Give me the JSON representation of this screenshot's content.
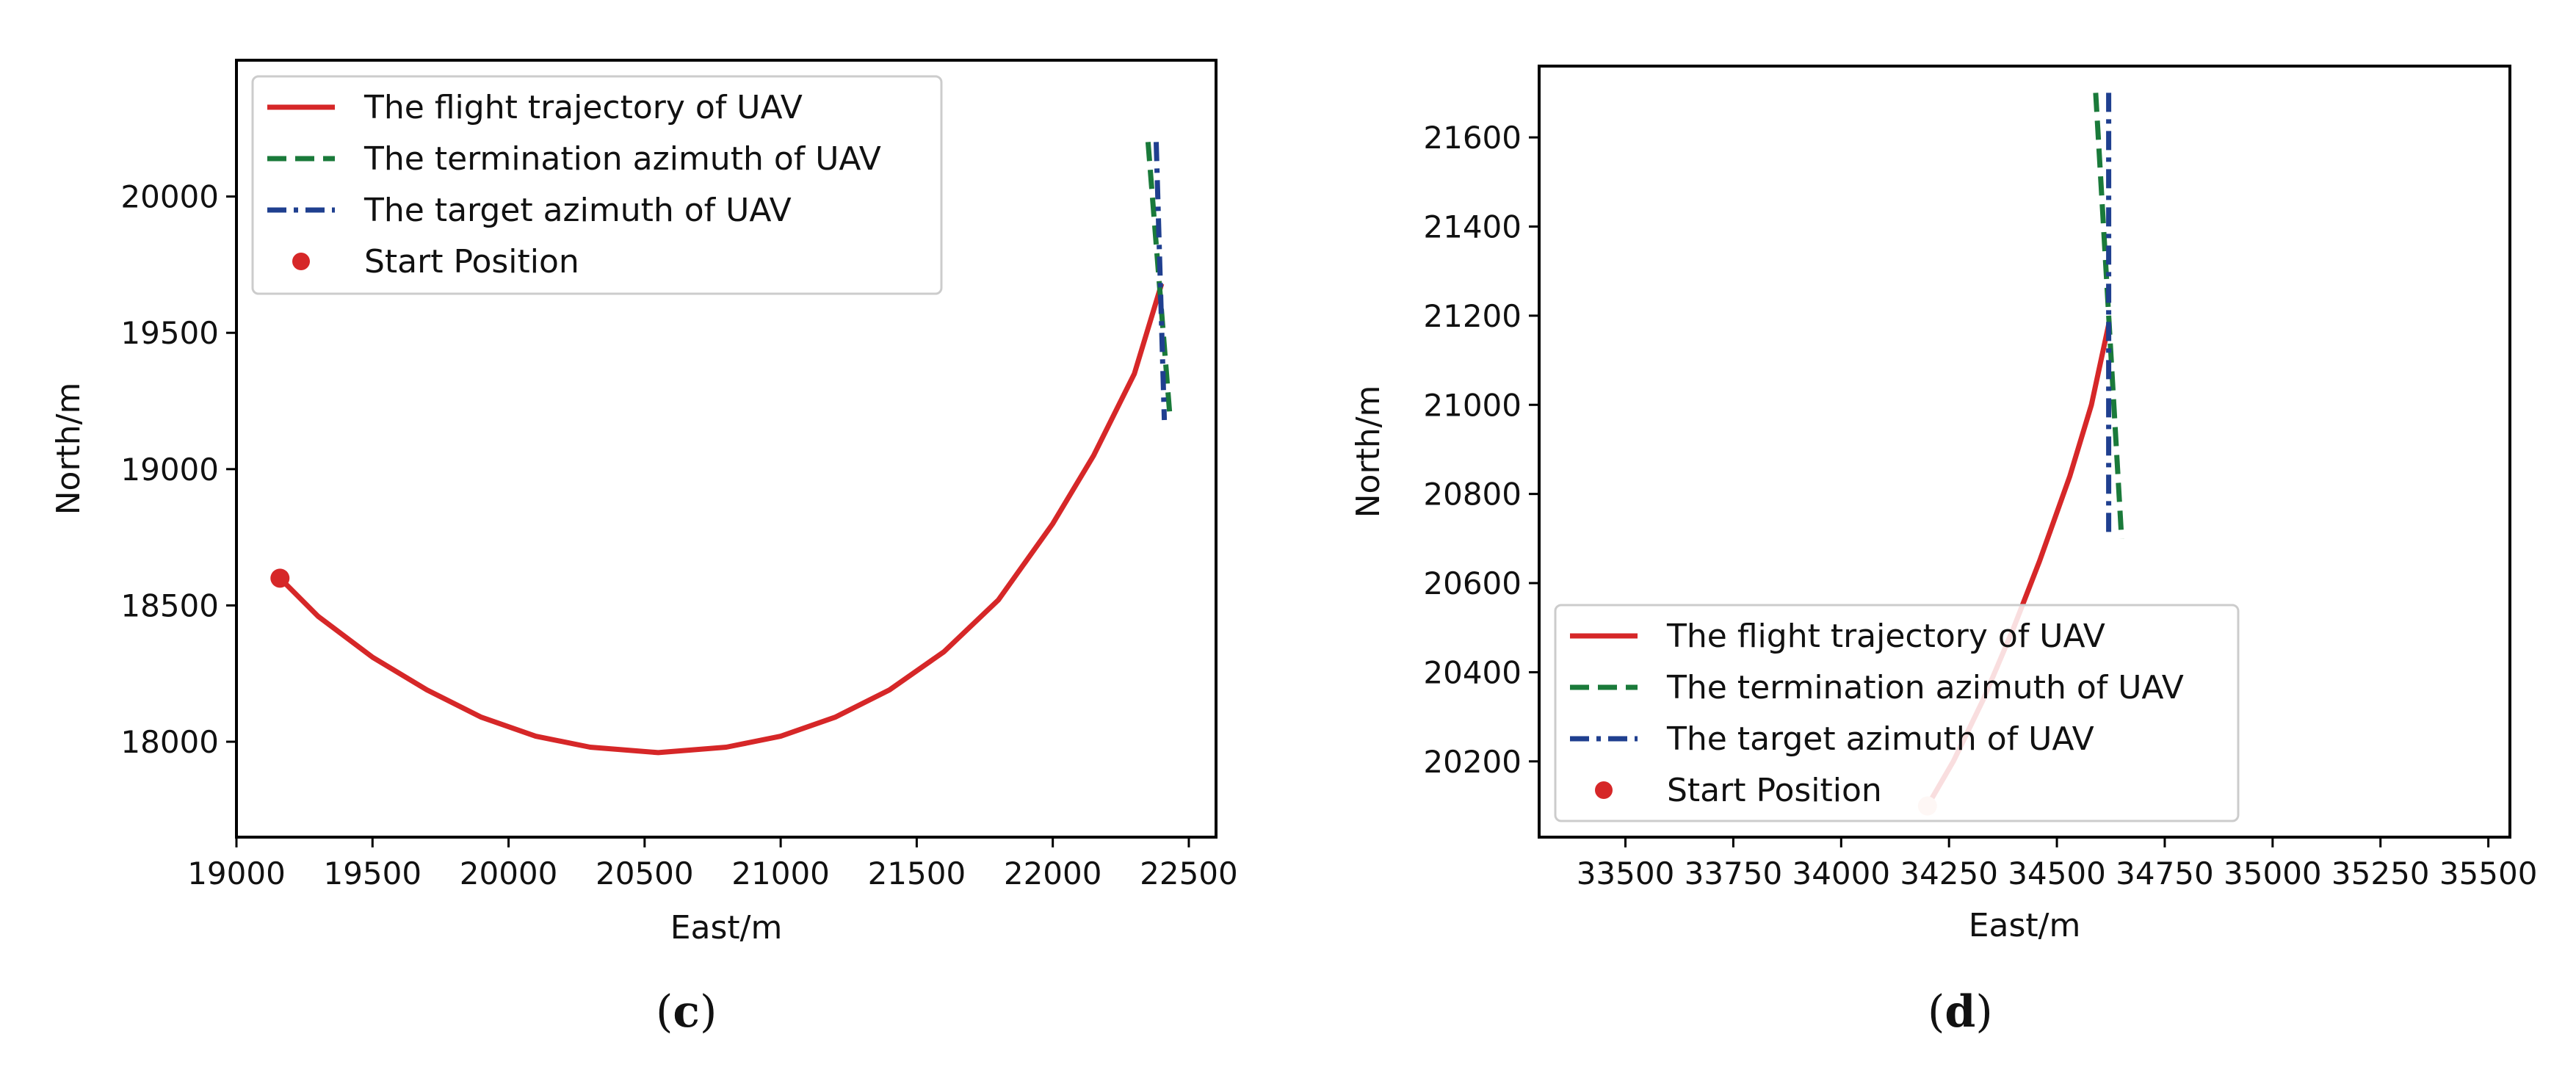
{
  "chart_data": [
    {
      "type": "line",
      "caption": "(c)",
      "xlabel": "East/m",
      "ylabel": "North/m",
      "xlim": [
        19000,
        22600
      ],
      "ylim": [
        17650,
        20500
      ],
      "xticks": [
        19000,
        19500,
        20000,
        20500,
        21000,
        21500,
        22000,
        22500
      ],
      "yticks": [
        18000,
        18500,
        19000,
        19500,
        20000
      ],
      "legend_position": "upper-left",
      "series": [
        {
          "name": "The flight trajectory of UAV",
          "style": "solid",
          "color": "#d62728",
          "x": [
            19160,
            19300,
            19500,
            19700,
            19900,
            20100,
            20300,
            20550,
            20800,
            21000,
            21200,
            21400,
            21600,
            21800,
            22000,
            22150,
            22300,
            22400
          ],
          "y": [
            18600,
            18460,
            18310,
            18190,
            18090,
            18020,
            17980,
            17960,
            17980,
            18020,
            18090,
            18190,
            18330,
            18520,
            18800,
            19050,
            19350,
            19680
          ]
        },
        {
          "name": "The termination azimuth of UAV",
          "style": "dashed",
          "color": "#1a7a3a",
          "x": [
            22350,
            22370,
            22390,
            22410,
            22430
          ],
          "y": [
            20200,
            19950,
            19700,
            19450,
            19200
          ]
        },
        {
          "name": "The target azimuth of UAV",
          "style": "dashdot",
          "color": "#1f3f8f",
          "x": [
            22380,
            22390,
            22400,
            22410
          ],
          "y": [
            20200,
            19860,
            19520,
            19180
          ]
        },
        {
          "name": "Start Position",
          "style": "marker",
          "color": "#d62728",
          "x": [
            19160
          ],
          "y": [
            18600
          ]
        }
      ]
    },
    {
      "type": "line",
      "caption": "(d)",
      "xlabel": "East/m",
      "ylabel": "North/m",
      "xlim": [
        33300,
        35550
      ],
      "ylim": [
        20030,
        21760
      ],
      "xticks": [
        33500,
        33750,
        34000,
        34250,
        34500,
        34750,
        35000,
        35250,
        35500
      ],
      "yticks": [
        20200,
        20400,
        20600,
        20800,
        21000,
        21200,
        21400,
        21600
      ],
      "legend_position": "lower-left",
      "series": [
        {
          "name": "The flight trajectory of UAV",
          "style": "solid",
          "color": "#d62728",
          "x": [
            34200,
            34260,
            34330,
            34400,
            34460,
            34530,
            34580,
            34620
          ],
          "y": [
            20100,
            20200,
            20340,
            20500,
            20650,
            20840,
            21000,
            21180
          ]
        },
        {
          "name": "The termination azimuth of UAV",
          "style": "dashed",
          "color": "#1a7a3a",
          "x": [
            34590,
            34605,
            34620,
            34635,
            34650
          ],
          "y": [
            21700,
            21450,
            21200,
            20950,
            20700
          ]
        },
        {
          "name": "The target azimuth of UAV",
          "style": "dashdot",
          "color": "#1f3f8f",
          "x": [
            34620,
            34620,
            34620
          ],
          "y": [
            21700,
            21200,
            20700
          ]
        },
        {
          "name": "Start Position",
          "style": "marker",
          "color": "#d62728",
          "x": [
            34200
          ],
          "y": [
            20100
          ]
        }
      ]
    }
  ]
}
